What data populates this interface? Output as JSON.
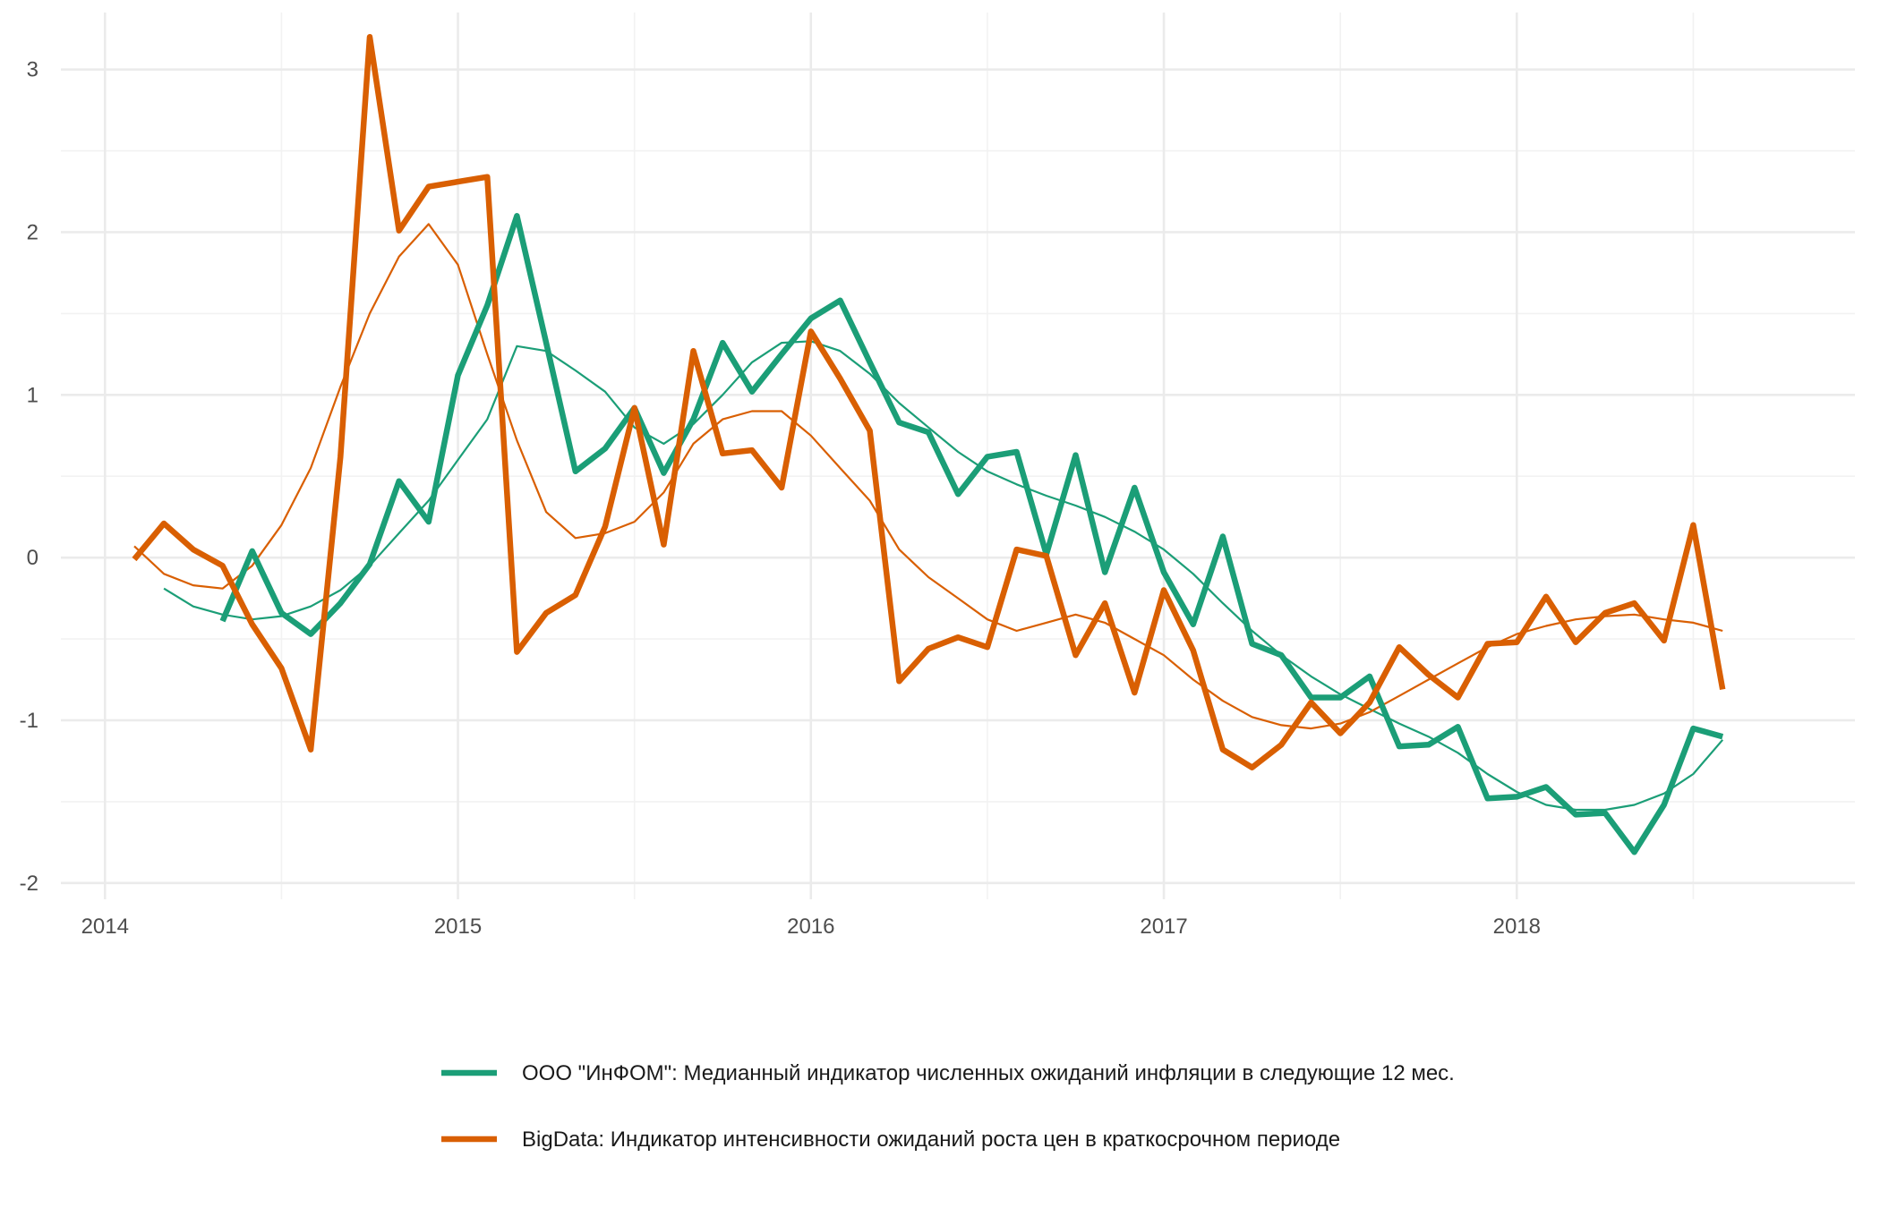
{
  "chart_data": {
    "type": "line",
    "title": "",
    "xlabel": "",
    "ylabel": "",
    "xlim": [
      2013.875,
      2018.958
    ],
    "ylim": [
      -2.1,
      3.35
    ],
    "x_ticks": [
      2014,
      2015,
      2016,
      2017,
      2018
    ],
    "x_tick_labels": [
      "2014",
      "2015",
      "2016",
      "2017",
      "2018"
    ],
    "y_ticks": [
      -2,
      -1,
      0,
      1,
      2,
      3
    ],
    "y_tick_labels": [
      "-2",
      "-1",
      "0",
      "1",
      "2",
      "3"
    ],
    "grid": true,
    "legend_position": "bottom",
    "series": [
      {
        "name": "ООО \"ИнФОМ\": Медианный индикатор численных ожиданий инфляции в следующие 12 мес.",
        "color": "#1b9e77",
        "role": "indicator",
        "x": [
          2014.333,
          2014.417,
          2014.5,
          2014.583,
          2014.667,
          2014.75,
          2014.833,
          2014.917,
          2015.0,
          2015.083,
          2015.167,
          2015.25,
          2015.333,
          2015.417,
          2015.5,
          2015.583,
          2015.667,
          2015.75,
          2015.833,
          2015.917,
          2016.0,
          2016.083,
          2016.167,
          2016.25,
          2016.333,
          2016.417,
          2016.5,
          2016.583,
          2016.667,
          2016.75,
          2016.833,
          2016.917,
          2017.0,
          2017.083,
          2017.167,
          2017.25,
          2017.333,
          2017.417,
          2017.5,
          2017.583,
          2017.667,
          2017.75,
          2017.833,
          2017.917,
          2018.0,
          2018.083,
          2018.167,
          2018.25,
          2018.333,
          2018.417,
          2018.5,
          2018.583
        ],
        "values": [
          -0.39,
          0.04,
          -0.34,
          -0.47,
          -0.28,
          -0.04,
          0.47,
          0.22,
          1.12,
          1.55,
          2.1,
          1.32,
          0.53,
          0.67,
          0.92,
          0.52,
          0.85,
          1.32,
          1.02,
          1.25,
          1.47,
          1.58,
          1.2,
          0.83,
          0.77,
          0.39,
          0.62,
          0.65,
          0.02,
          0.63,
          -0.09,
          0.43,
          -0.09,
          -0.41,
          0.13,
          -0.53,
          -0.6,
          -0.86,
          -0.86,
          -0.73,
          -1.16,
          -1.15,
          -1.04,
          -1.48,
          -1.47,
          -1.41,
          -1.58,
          -1.57,
          -1.81,
          -1.52,
          -1.05,
          -1.1
        ]
      },
      {
        "name": "BigData: Индикатор интенсивности ожиданий роста цен в краткосрочном периоде",
        "color": "#d95f02",
        "role": "indicator",
        "x": [
          2014.083,
          2014.167,
          2014.25,
          2014.333,
          2014.417,
          2014.5,
          2014.583,
          2014.667,
          2014.75,
          2014.833,
          2014.917,
          2015.0,
          2015.083,
          2015.167,
          2015.25,
          2015.333,
          2015.417,
          2015.5,
          2015.583,
          2015.667,
          2015.75,
          2015.833,
          2015.917,
          2016.0,
          2016.083,
          2016.167,
          2016.25,
          2016.333,
          2016.417,
          2016.5,
          2016.583,
          2016.667,
          2016.75,
          2016.833,
          2016.917,
          2017.0,
          2017.083,
          2017.167,
          2017.25,
          2017.333,
          2017.417,
          2017.5,
          2017.583,
          2017.667,
          2017.75,
          2017.833,
          2017.917,
          2018.0,
          2018.083,
          2018.167,
          2018.25,
          2018.333,
          2018.417,
          2018.5,
          2018.583
        ],
        "values": [
          -0.01,
          0.21,
          0.05,
          -0.05,
          -0.41,
          -0.68,
          -1.18,
          0.62,
          3.2,
          2.01,
          2.28,
          2.31,
          2.34,
          -0.58,
          -0.34,
          -0.23,
          0.19,
          0.92,
          0.08,
          1.27,
          0.64,
          0.66,
          0.43,
          1.39,
          1.1,
          0.78,
          -0.76,
          -0.56,
          -0.49,
          -0.55,
          0.05,
          0.01,
          -0.6,
          -0.28,
          -0.83,
          -0.2,
          -0.57,
          -1.18,
          -1.29,
          -1.15,
          -0.89,
          -1.08,
          -0.89,
          -0.55,
          -0.72,
          -0.86,
          -0.53,
          -0.52,
          -0.24,
          -0.52,
          -0.34,
          -0.28,
          -0.51,
          0.2,
          -0.81
        ]
      },
      {
        "name": "",
        "color": "#1b9e77",
        "role": "trend",
        "x": [
          2014.167,
          2014.25,
          2014.333,
          2014.417,
          2014.5,
          2014.583,
          2014.667,
          2014.75,
          2014.833,
          2014.917,
          2015.0,
          2015.083,
          2015.167,
          2015.25,
          2015.333,
          2015.417,
          2015.5,
          2015.583,
          2015.667,
          2015.75,
          2015.833,
          2015.917,
          2016.0,
          2016.083,
          2016.167,
          2016.25,
          2016.333,
          2016.417,
          2016.5,
          2016.583,
          2016.667,
          2016.75,
          2016.833,
          2016.917,
          2017.0,
          2017.083,
          2017.167,
          2017.25,
          2017.333,
          2017.417,
          2017.5,
          2017.583,
          2017.667,
          2017.75,
          2017.833,
          2017.917,
          2018.0,
          2018.083,
          2018.167,
          2018.25,
          2018.333,
          2018.417,
          2018.5,
          2018.583
        ],
        "values": [
          -0.19,
          -0.3,
          -0.35,
          -0.38,
          -0.36,
          -0.3,
          -0.2,
          -0.05,
          0.15,
          0.35,
          0.6,
          0.85,
          1.3,
          1.27,
          1.15,
          1.02,
          0.8,
          0.7,
          0.82,
          1.0,
          1.2,
          1.32,
          1.33,
          1.27,
          1.13,
          0.95,
          0.8,
          0.65,
          0.53,
          0.45,
          0.38,
          0.32,
          0.25,
          0.16,
          0.05,
          -0.1,
          -0.28,
          -0.45,
          -0.6,
          -0.73,
          -0.84,
          -0.93,
          -1.02,
          -1.1,
          -1.2,
          -1.33,
          -1.44,
          -1.52,
          -1.55,
          -1.55,
          -1.52,
          -1.45,
          -1.33,
          -1.12
        ]
      },
      {
        "name": "",
        "color": "#d95f02",
        "role": "trend",
        "x": [
          2014.083,
          2014.167,
          2014.25,
          2014.333,
          2014.417,
          2014.5,
          2014.583,
          2014.667,
          2014.75,
          2014.833,
          2014.917,
          2015.0,
          2015.083,
          2015.167,
          2015.25,
          2015.333,
          2015.417,
          2015.5,
          2015.583,
          2015.667,
          2015.75,
          2015.833,
          2015.917,
          2016.0,
          2016.083,
          2016.167,
          2016.25,
          2016.333,
          2016.417,
          2016.5,
          2016.583,
          2016.667,
          2016.75,
          2016.833,
          2016.917,
          2017.0,
          2017.083,
          2017.167,
          2017.25,
          2017.333,
          2017.417,
          2017.5,
          2017.583,
          2017.667,
          2017.75,
          2017.833,
          2017.917,
          2018.0,
          2018.083,
          2018.167,
          2018.25,
          2018.333,
          2018.417,
          2018.5,
          2018.583
        ],
        "values": [
          0.07,
          -0.1,
          -0.17,
          -0.19,
          -0.05,
          0.2,
          0.55,
          1.05,
          1.5,
          1.85,
          2.05,
          1.8,
          1.25,
          0.72,
          0.28,
          0.12,
          0.15,
          0.22,
          0.4,
          0.7,
          0.85,
          0.9,
          0.9,
          0.75,
          0.55,
          0.35,
          0.05,
          -0.12,
          -0.25,
          -0.38,
          -0.45,
          -0.4,
          -0.35,
          -0.4,
          -0.5,
          -0.6,
          -0.75,
          -0.88,
          -0.98,
          -1.03,
          -1.05,
          -1.02,
          -0.95,
          -0.85,
          -0.75,
          -0.65,
          -0.55,
          -0.47,
          -0.42,
          -0.38,
          -0.36,
          -0.35,
          -0.38,
          -0.4,
          -0.45
        ]
      }
    ]
  }
}
